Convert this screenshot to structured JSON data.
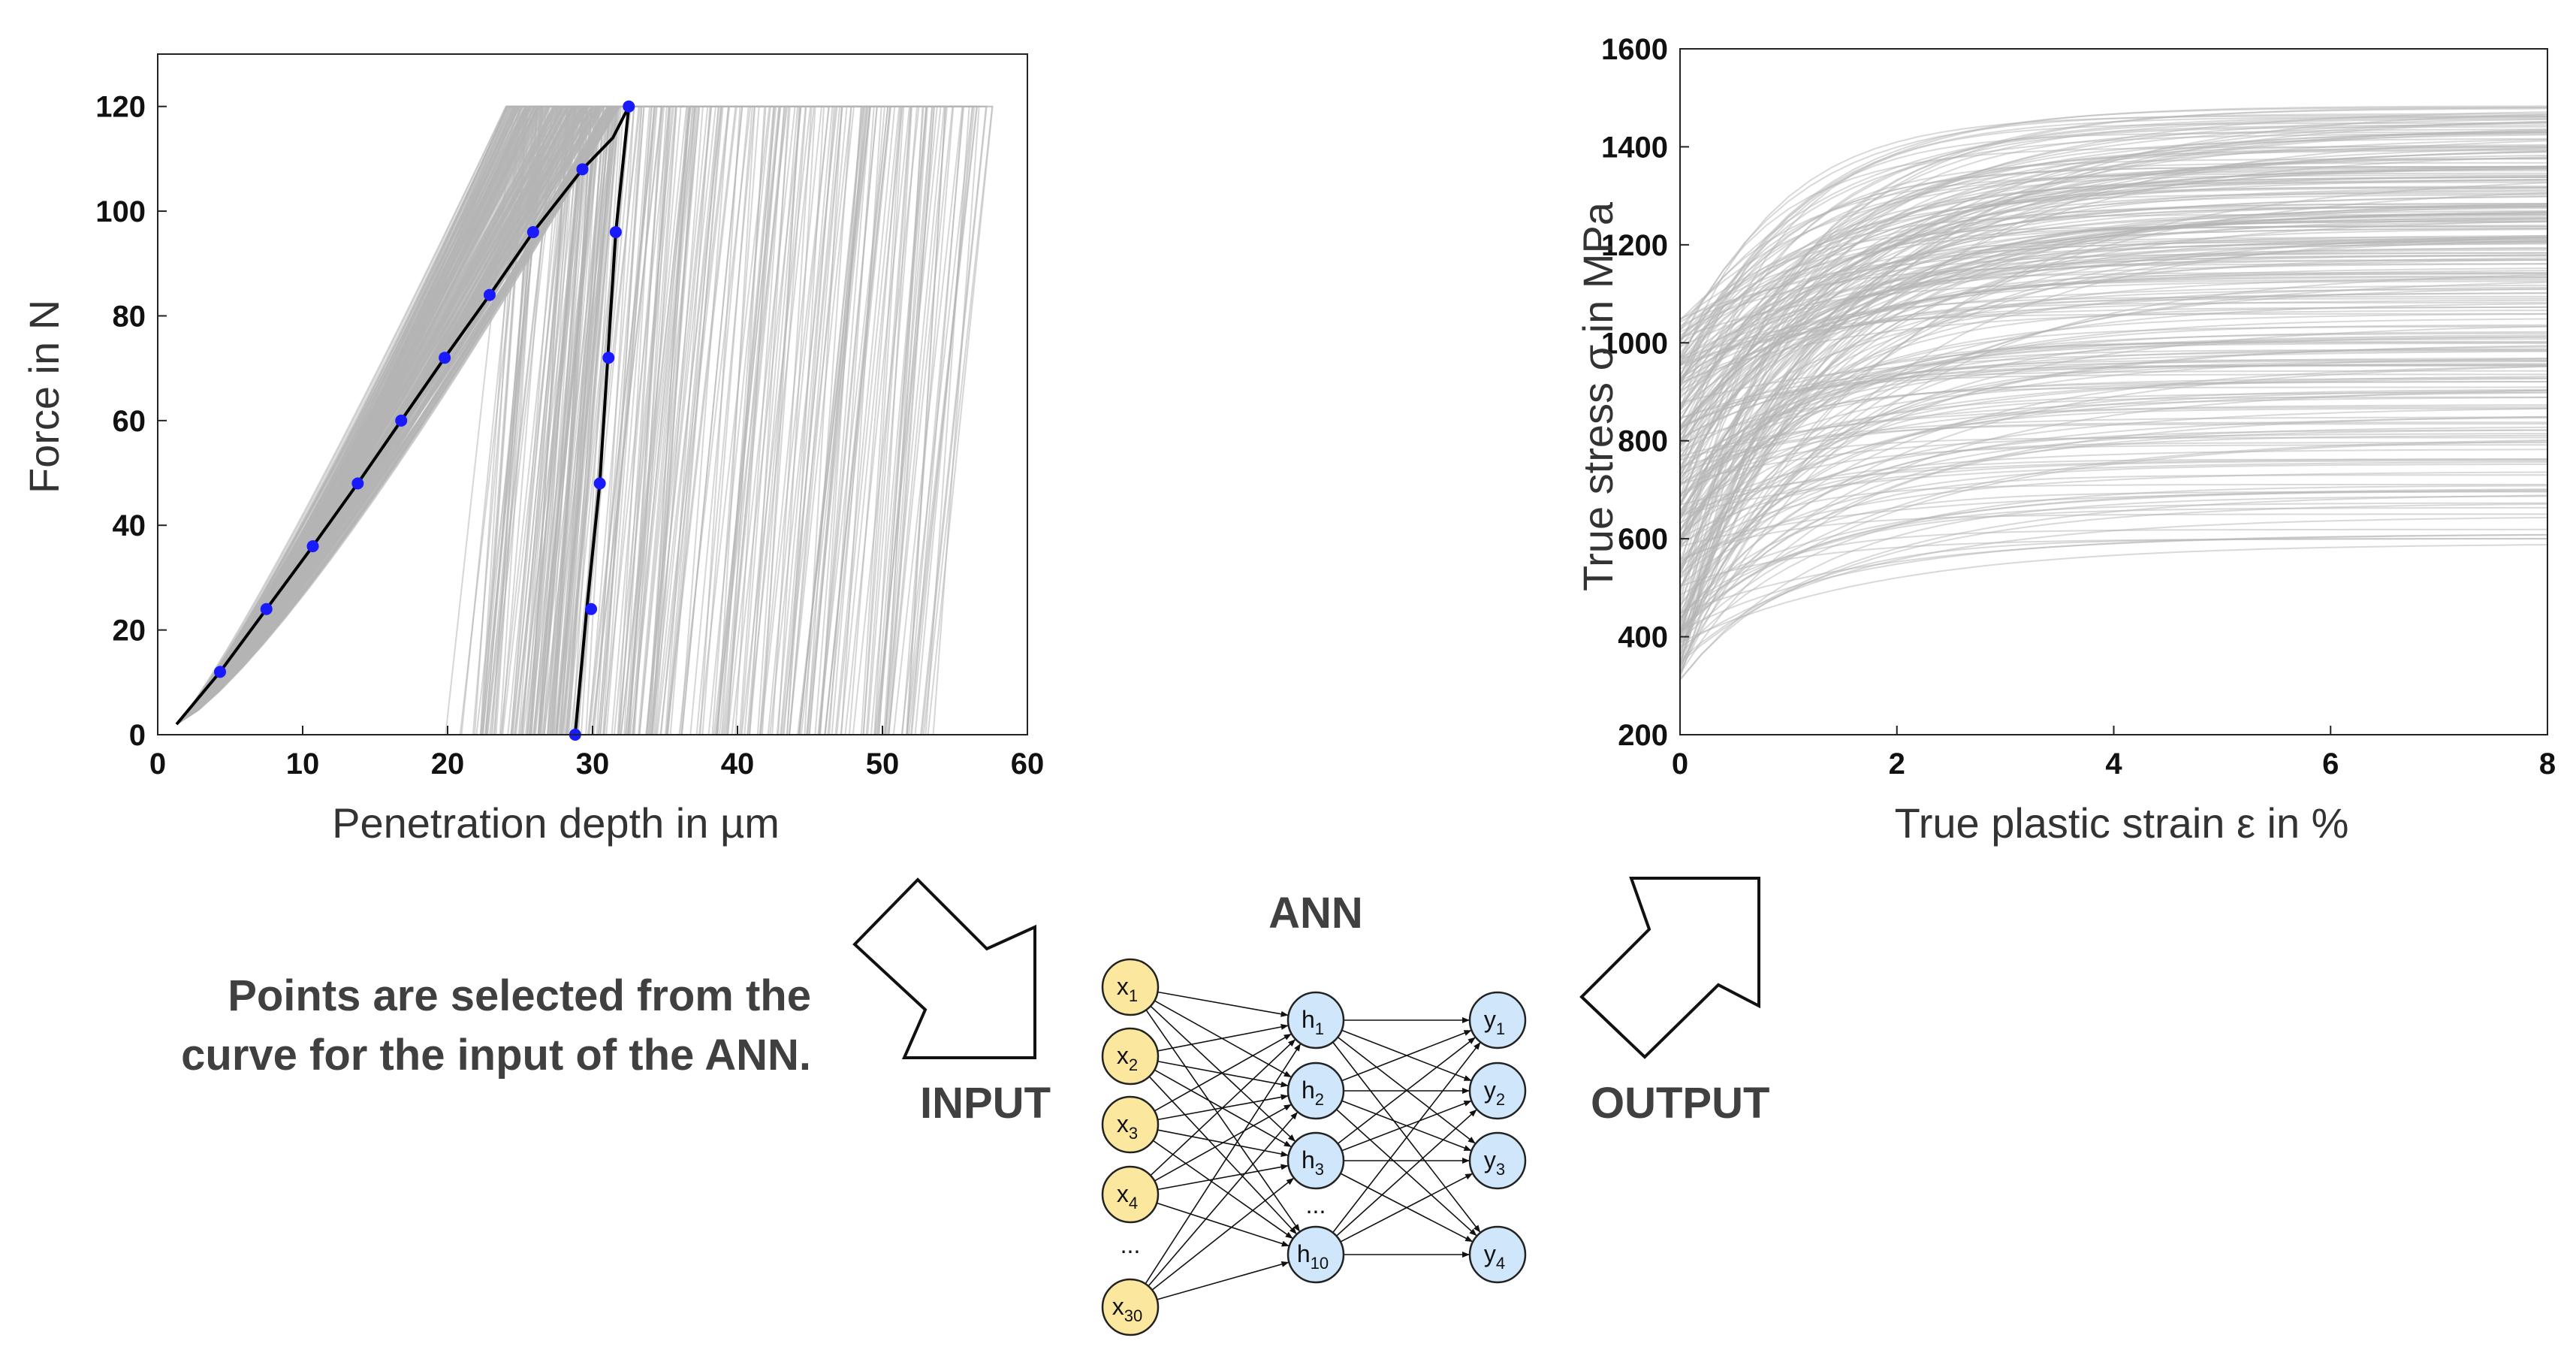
{
  "colors": {
    "curve_gray": "#b4b4b4",
    "highlight_curve": "#000000",
    "marker": "#1a1aff",
    "input_node_fill": "#fbe79e",
    "node_fill": "#cfe6fb",
    "text_dark": "#404040"
  },
  "chart_data": [
    {
      "type": "line",
      "title": "",
      "xlabel": "Penetration depth in µm",
      "ylabel": "Force in N",
      "xlim": [
        0,
        60
      ],
      "ylim": [
        0,
        130
      ],
      "xticks": [
        0,
        10,
        20,
        30,
        40,
        50,
        60
      ],
      "yticks": [
        0,
        20,
        40,
        60,
        80,
        100,
        120
      ],
      "grid": false,
      "background_series": {
        "description": "simulated load-unload indentation curves",
        "count": 300,
        "max_force": 120,
        "loading_depth_at_max_range": [
          24,
          32
        ],
        "unloading_start_depth_range": [
          24,
          58
        ],
        "residual_depth_range": [
          19.5,
          56
        ]
      },
      "series": [
        {
          "name": "selected curve (loading)",
          "x": [
            1.3,
            4.3,
            7.5,
            10.7,
            13.8,
            16.8,
            19.8,
            22.9,
            25.9,
            29.3,
            31.4,
            32.5
          ],
          "y": [
            2,
            12,
            24,
            36,
            48,
            60,
            72,
            84,
            96,
            108,
            114,
            120
          ]
        },
        {
          "name": "selected curve (unloading)",
          "x": [
            32.5,
            31.6,
            30.5,
            29.6,
            28.8
          ],
          "y": [
            120,
            96,
            48,
            24,
            0
          ]
        }
      ],
      "selected_points": {
        "x": [
          4.3,
          7.5,
          10.7,
          13.8,
          16.8,
          19.8,
          22.9,
          25.9,
          29.3,
          32.5,
          31.6,
          31.1,
          30.5,
          29.9,
          28.8
        ],
        "y": [
          12,
          24,
          36,
          48,
          60,
          72,
          84,
          96,
          108,
          120,
          96,
          72,
          48,
          24,
          0
        ]
      }
    },
    {
      "type": "line",
      "title": "",
      "xlabel": "True plastic strain ε in %",
      "ylabel": "True stress σ in MPa",
      "xlim": [
        0,
        8
      ],
      "ylim": [
        200,
        1600
      ],
      "xticks": [
        0,
        2,
        4,
        6,
        8
      ],
      "yticks": [
        200,
        400,
        600,
        800,
        1000,
        1200,
        1400,
        1600
      ],
      "grid": false,
      "background_series": {
        "description": "flow curves (ANN outputs)",
        "count": 260,
        "initial_stress_range": [
          310,
          1050
        ],
        "final_stress_range": [
          590,
          1490
        ],
        "saturation_strain_range": [
          0.8,
          2.0
        ]
      }
    }
  ],
  "labels": {
    "ann_title": "ANN",
    "input": "INPUT",
    "output": "OUTPUT",
    "note_line1": "Points are selected from the",
    "note_line2": "curve for the input of the ANN."
  },
  "network": {
    "inputs": [
      {
        "base": "x",
        "sub": "1"
      },
      {
        "base": "x",
        "sub": "2"
      },
      {
        "base": "x",
        "sub": "3"
      },
      {
        "base": "x",
        "sub": "4"
      },
      {
        "base": "x",
        "sub": "30"
      }
    ],
    "hidden": [
      {
        "base": "h",
        "sub": "1"
      },
      {
        "base": "h",
        "sub": "2"
      },
      {
        "base": "h",
        "sub": "3"
      },
      {
        "base": "h",
        "sub": "10"
      }
    ],
    "outputs": [
      {
        "base": "y",
        "sub": "1"
      },
      {
        "base": "y",
        "sub": "2"
      },
      {
        "base": "y",
        "sub": "3"
      },
      {
        "base": "y",
        "sub": "4"
      }
    ],
    "ellipsis": "..."
  }
}
